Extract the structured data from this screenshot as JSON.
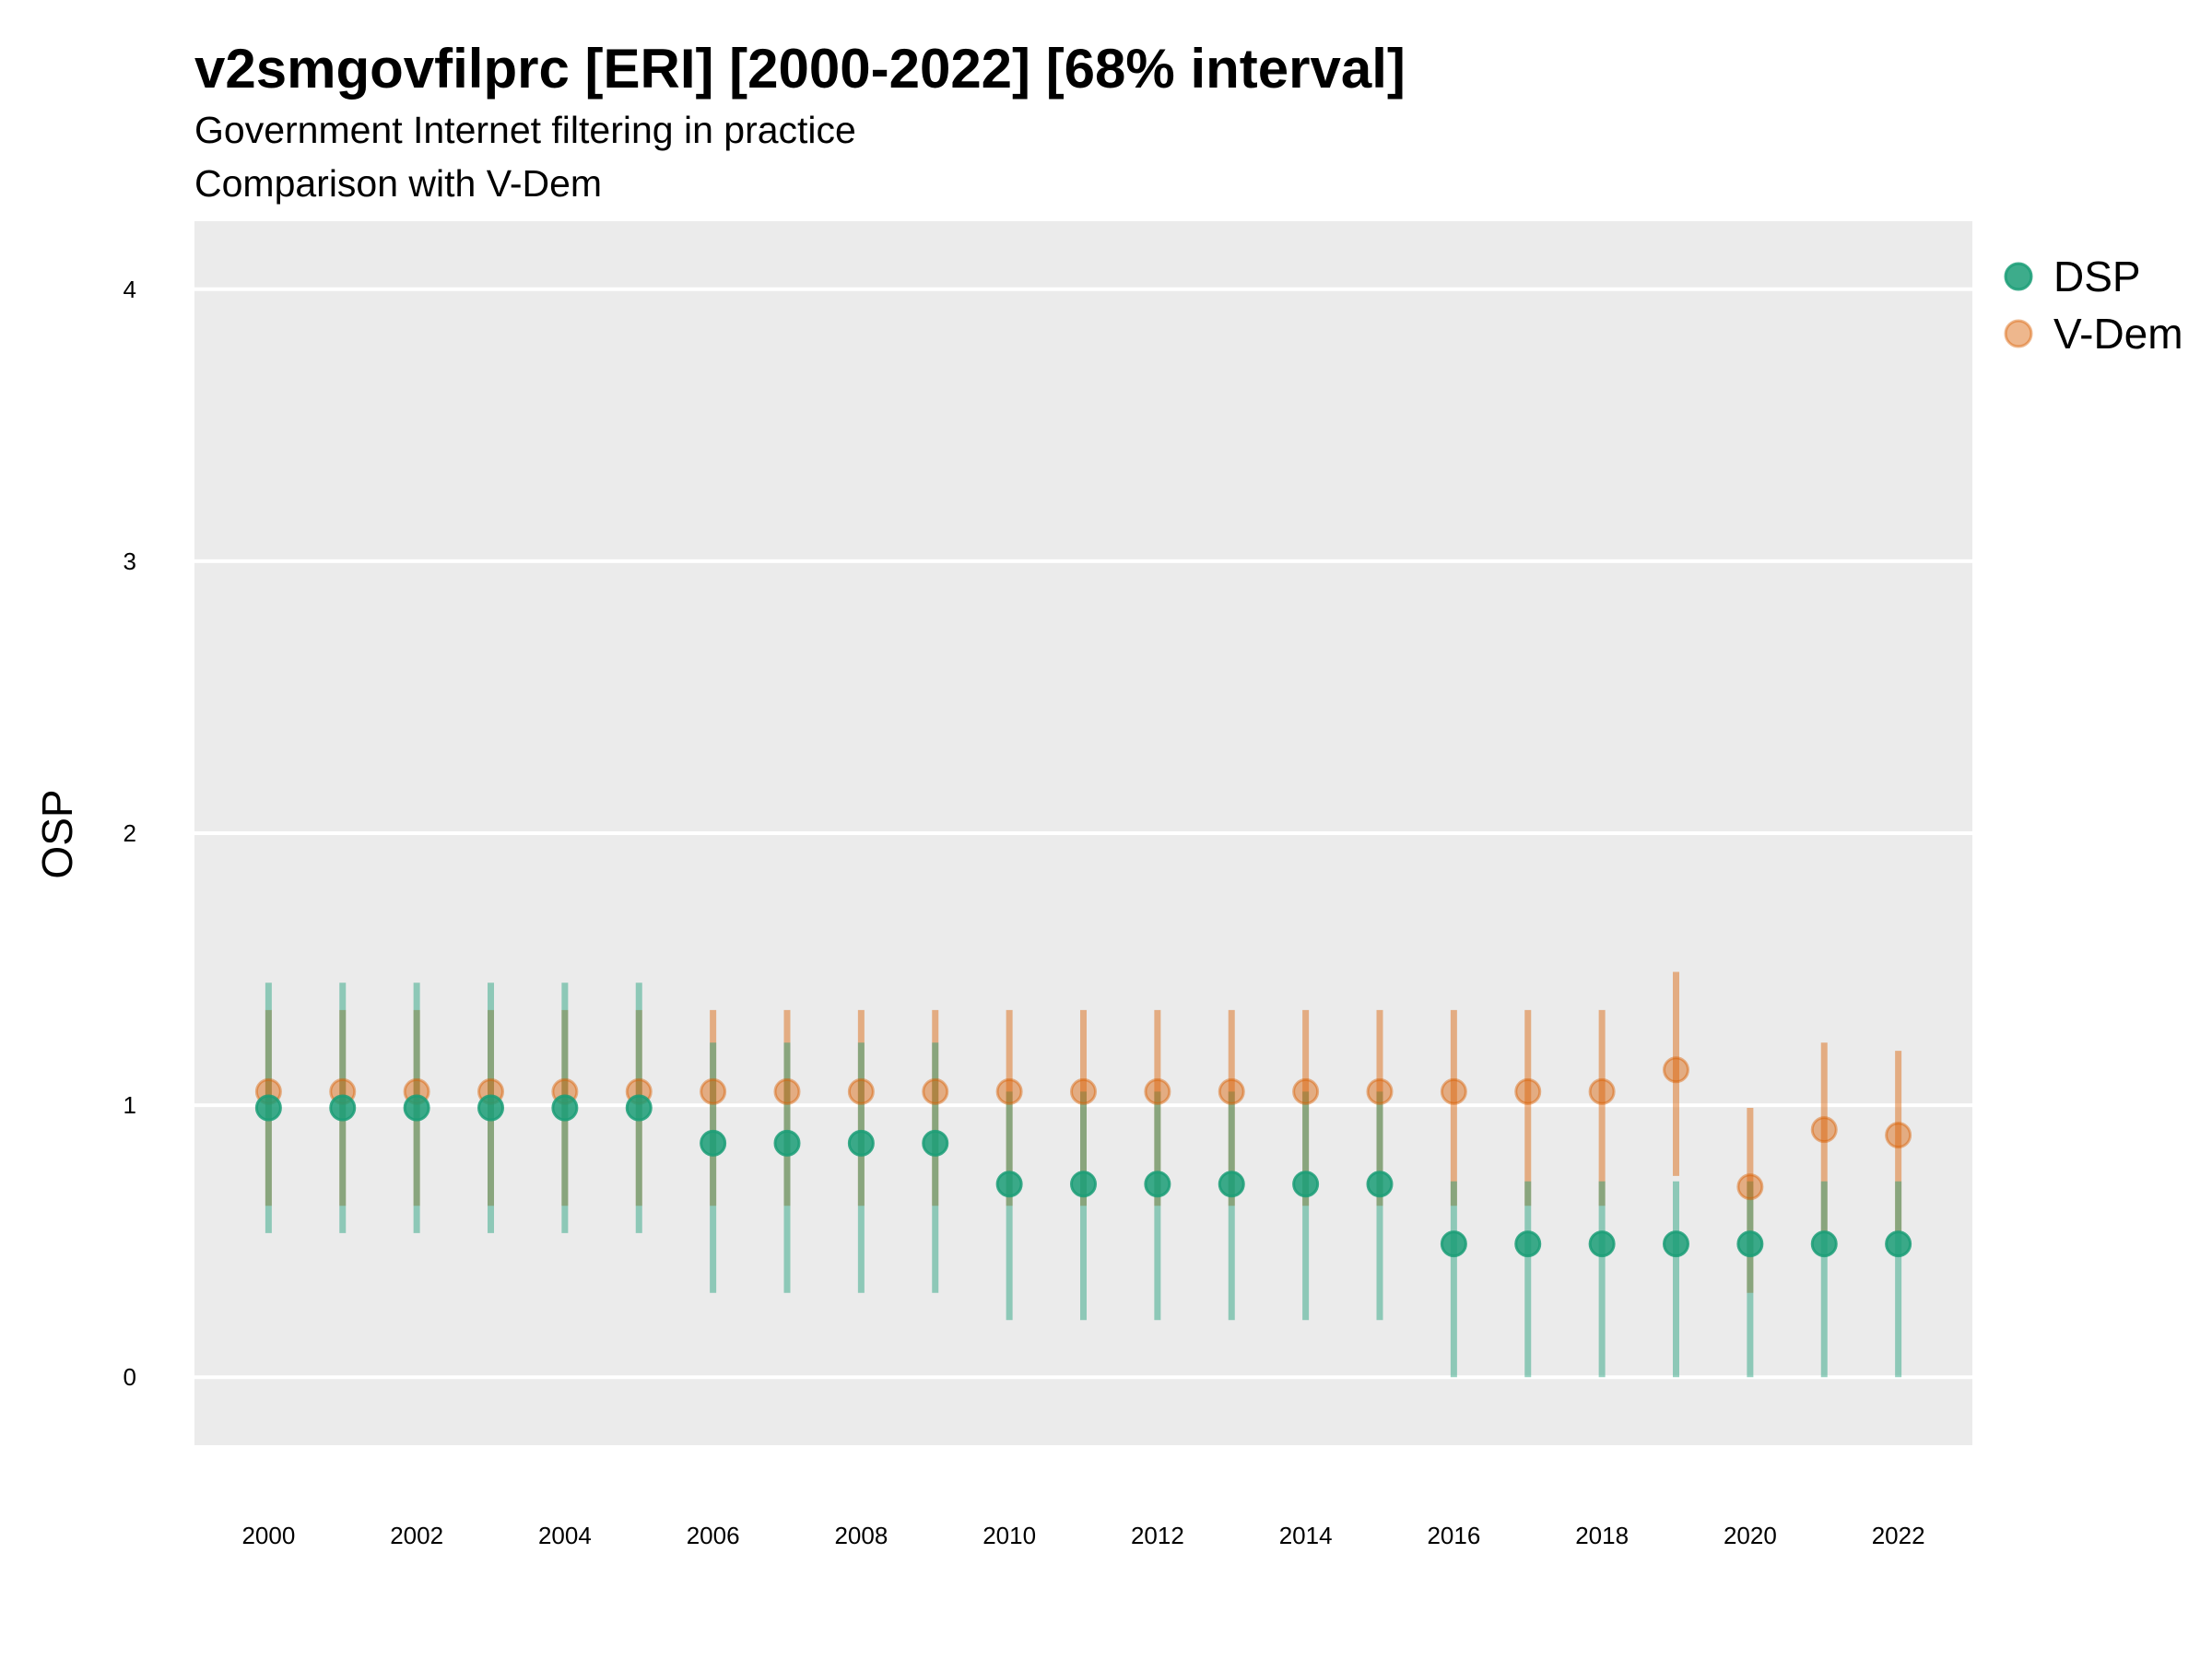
{
  "chart_data": {
    "type": "scatter",
    "title": "v2smgovfilprc [ERI] [2000-2022] [68% interval]",
    "subtitle": "Government Internet filtering in practice",
    "subtitle2": "Comparison with V-Dem",
    "ylabel": "OSP",
    "xlabel": "",
    "ylim": [
      -0.25,
      4.25
    ],
    "yticks": [
      0,
      1,
      2,
      3,
      4
    ],
    "xlim": [
      1999.0,
      2023.0
    ],
    "xticks": [
      2000,
      2002,
      2004,
      2006,
      2008,
      2010,
      2012,
      2014,
      2016,
      2018,
      2020,
      2022
    ],
    "grid": true,
    "legend_position": "right",
    "x": [
      2000,
      2001,
      2002,
      2003,
      2004,
      2005,
      2006,
      2007,
      2008,
      2009,
      2010,
      2011,
      2012,
      2013,
      2014,
      2015,
      2016,
      2017,
      2018,
      2019,
      2020,
      2021,
      2022
    ],
    "series": [
      {
        "name": "DSP",
        "color": "#1b9e77",
        "values": [
          0.99,
          0.99,
          0.99,
          0.99,
          0.99,
          0.99,
          0.86,
          0.86,
          0.86,
          0.86,
          0.71,
          0.71,
          0.71,
          0.71,
          0.71,
          0.71,
          0.49,
          0.49,
          0.49,
          0.49,
          0.49,
          0.49,
          0.49
        ],
        "lower": [
          0.53,
          0.53,
          0.53,
          0.53,
          0.53,
          0.53,
          0.31,
          0.31,
          0.31,
          0.31,
          0.21,
          0.21,
          0.21,
          0.21,
          0.21,
          0.21,
          0.0,
          0.0,
          0.0,
          0.0,
          0.0,
          0.0,
          0.0
        ],
        "upper": [
          1.45,
          1.45,
          1.45,
          1.45,
          1.45,
          1.45,
          1.23,
          1.23,
          1.23,
          1.23,
          1.05,
          1.05,
          1.05,
          1.05,
          1.05,
          1.05,
          0.72,
          0.72,
          0.72,
          0.72,
          0.72,
          0.72,
          0.72
        ]
      },
      {
        "name": "V-Dem",
        "color": "#d95f02",
        "values": [
          1.05,
          1.05,
          1.05,
          1.05,
          1.05,
          1.05,
          1.05,
          1.05,
          1.05,
          1.05,
          1.05,
          1.05,
          1.05,
          1.05,
          1.05,
          1.05,
          1.05,
          1.05,
          1.05,
          1.13,
          0.7,
          0.91,
          0.89
        ],
        "lower": [
          0.63,
          0.63,
          0.63,
          0.63,
          0.63,
          0.63,
          0.63,
          0.63,
          0.63,
          0.63,
          0.63,
          0.63,
          0.63,
          0.63,
          0.63,
          0.63,
          0.63,
          0.63,
          0.63,
          0.74,
          0.31,
          0.53,
          0.53
        ],
        "upper": [
          1.35,
          1.35,
          1.35,
          1.35,
          1.35,
          1.35,
          1.35,
          1.35,
          1.35,
          1.35,
          1.35,
          1.35,
          1.35,
          1.35,
          1.35,
          1.35,
          1.35,
          1.35,
          1.35,
          1.49,
          0.99,
          1.23,
          1.2
        ]
      }
    ]
  },
  "colors": {
    "panel_background": "#ebebeb",
    "grid": "#ffffff"
  }
}
